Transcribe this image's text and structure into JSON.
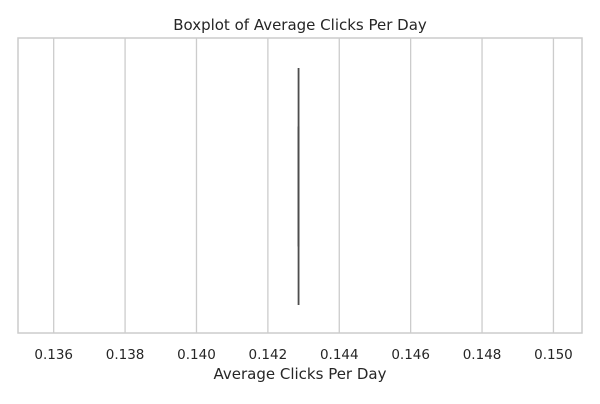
{
  "chart_data": {
    "type": "boxplot",
    "orientation": "horizontal",
    "title": "Boxplot of Average Clicks Per Day",
    "xlabel": "Average Clicks Per Day",
    "ylabel": "",
    "xlim": [
      0.135,
      0.1508
    ],
    "x_ticks": [
      0.136,
      0.138,
      0.14,
      0.142,
      0.144,
      0.146,
      0.148,
      0.15
    ],
    "x_tick_labels": [
      "0.136",
      "0.138",
      "0.140",
      "0.142",
      "0.144",
      "0.146",
      "0.148",
      "0.150"
    ],
    "grid": "vertical",
    "box": {
      "min": 0.14286,
      "q1": 0.14286,
      "median": 0.14286,
      "q3": 0.14286,
      "max": 0.14286
    },
    "colors": {
      "grid": "#cccccc",
      "axes_edge": "#cccccc",
      "box_line": "#4d4d4d",
      "text": "#262626",
      "background": "#ffffff"
    }
  }
}
